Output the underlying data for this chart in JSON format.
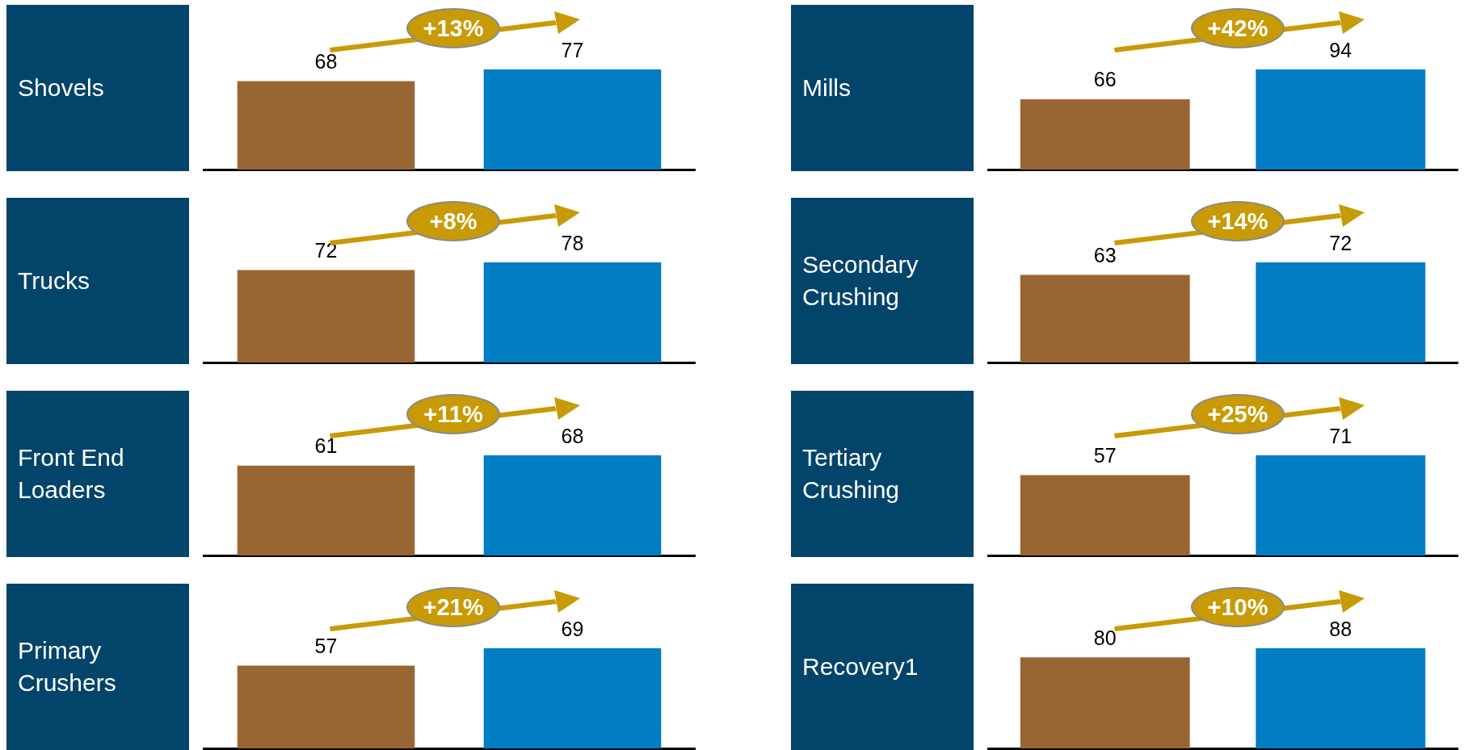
{
  "chart_data": [
    {
      "type": "bar",
      "title": "Shovels",
      "categories": [
        null,
        null
      ],
      "values": [
        68,
        77
      ],
      "colors": [
        "#996633",
        "#007dc3"
      ],
      "data_labels": true,
      "annotations": [
        "+13%"
      ]
    },
    {
      "type": "bar",
      "title": "Mills",
      "categories": [
        null,
        null
      ],
      "values": [
        66,
        94
      ],
      "colors": [
        "#996633",
        "#007dc3"
      ],
      "data_labels": true,
      "annotations": [
        "+42%"
      ]
    },
    {
      "type": "bar",
      "title": "Trucks",
      "categories": [
        null,
        null
      ],
      "values": [
        72,
        78
      ],
      "colors": [
        "#996633",
        "#007dc3"
      ],
      "data_labels": true,
      "annotations": [
        "+8%"
      ]
    },
    {
      "type": "bar",
      "title": "Secondary Crushing",
      "categories": [
        null,
        null
      ],
      "values": [
        63,
        72
      ],
      "colors": [
        "#996633",
        "#007dc3"
      ],
      "data_labels": true,
      "annotations": [
        "+14%"
      ]
    },
    {
      "type": "bar",
      "title": "Front End Loaders",
      "categories": [
        null,
        null
      ],
      "values": [
        61,
        68
      ],
      "colors": [
        "#996633",
        "#007dc3"
      ],
      "data_labels": true,
      "annotations": [
        "+11%"
      ]
    },
    {
      "type": "bar",
      "title": "Tertiary Crushing",
      "categories": [
        null,
        null
      ],
      "values": [
        57,
        71
      ],
      "colors": [
        "#996633",
        "#007dc3"
      ],
      "data_labels": true,
      "annotations": [
        "+25%"
      ]
    },
    {
      "type": "bar",
      "title": "Primary Crushers",
      "categories": [
        null,
        null
      ],
      "values": [
        57,
        69
      ],
      "colors": [
        "#996633",
        "#007dc3"
      ],
      "data_labels": true,
      "annotations": [
        "+21%"
      ]
    },
    {
      "type": "bar",
      "title": "Recovery1",
      "categories": [
        null,
        null
      ],
      "values": [
        80,
        88
      ],
      "colors": [
        "#996633",
        "#007dc3"
      ],
      "data_labels": true,
      "annotations": [
        "+10%"
      ]
    }
  ]
}
